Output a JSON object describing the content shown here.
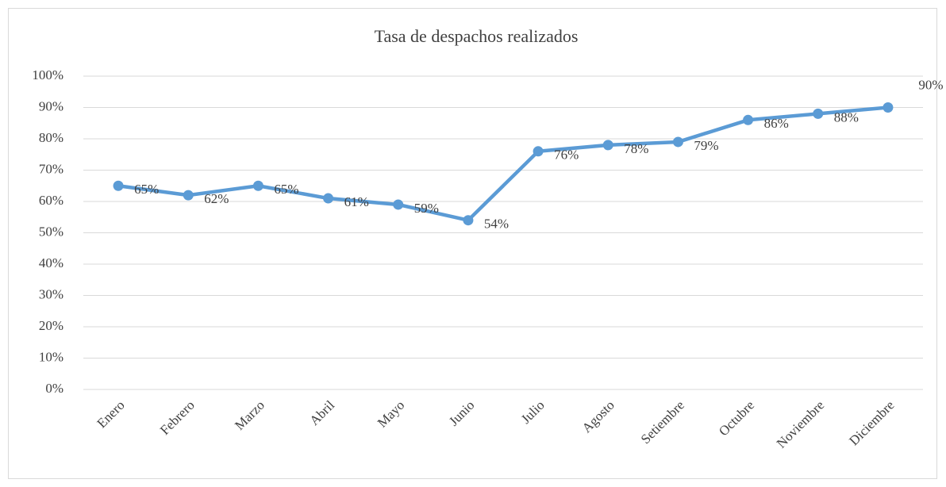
{
  "chart_data": {
    "type": "line",
    "title": "Tasa de despachos realizados",
    "categories": [
      "Enero",
      "Febrero",
      "Marzo",
      "Abril",
      "Mayo",
      "Junio",
      "Julio",
      "Agosto",
      "Setiembre",
      "Octubre",
      "Noviembre",
      "Diciembre"
    ],
    "series": [
      {
        "name": "Tasa de despachos realizados",
        "color": "#5b9bd5",
        "values": [
          65,
          62,
          65,
          61,
          59,
          54,
          76,
          78,
          79,
          86,
          88,
          90
        ],
        "value_labels": [
          "65%",
          "62%",
          "65%",
          "61%",
          "59%",
          "54%",
          "76%",
          "78%",
          "79%",
          "86%",
          "88%",
          "90%"
        ]
      }
    ],
    "ylim": [
      0,
      100
    ],
    "yticks": [
      {
        "value": 0,
        "label": "0%"
      },
      {
        "value": 10,
        "label": "10%"
      },
      {
        "value": 20,
        "label": "20%"
      },
      {
        "value": 30,
        "label": "30%"
      },
      {
        "value": 40,
        "label": "40%"
      },
      {
        "value": 50,
        "label": "50%"
      },
      {
        "value": 60,
        "label": "60%"
      },
      {
        "value": 70,
        "label": "70%"
      },
      {
        "value": 80,
        "label": "80%"
      },
      {
        "value": 90,
        "label": "90%"
      },
      {
        "value": 100,
        "label": "100%"
      }
    ],
    "grid": true
  }
}
